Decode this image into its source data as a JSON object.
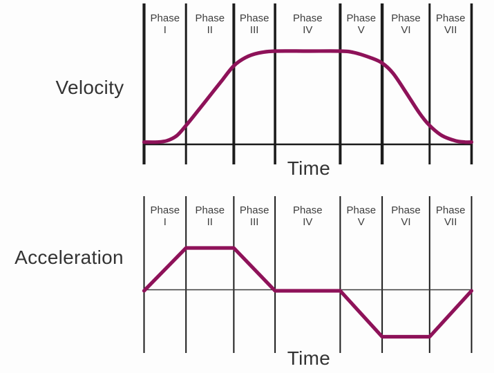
{
  "colors": {
    "curve": "#8e1259",
    "boundary_line": "#1c1c1c",
    "top_axis": "#1a1a1a",
    "bottom_axis": "#3c3c3c",
    "label_text": "#3d3d3d"
  },
  "chart_data": [
    {
      "id": "velocity",
      "type": "line",
      "ylabel": "Velocity",
      "xlabel": "Time",
      "phase_word": "Phase",
      "phases": [
        "I",
        "II",
        "III",
        "IV",
        "V",
        "VI",
        "VII"
      ],
      "phase_boundaries_t": [
        0,
        0.128,
        0.274,
        0.4,
        0.599,
        0.727,
        0.872,
        1
      ],
      "y_range": [
        0,
        1
      ],
      "values_normalized": true,
      "grid": "vertical phase boundaries only, no numeric ticks",
      "series": [
        {
          "name": "Velocity",
          "smooth": true,
          "points": [
            [
              0,
              0.01
            ],
            [
              0.04,
              0.01
            ],
            [
              0.07,
              0.025
            ],
            [
              0.1,
              0.08
            ],
            [
              0.128,
              0.19
            ],
            [
              0.16,
              0.33
            ],
            [
              0.2,
              0.51
            ],
            [
              0.24,
              0.69
            ],
            [
              0.274,
              0.84
            ],
            [
              0.31,
              0.93
            ],
            [
              0.35,
              0.98
            ],
            [
              0.4,
              1
            ],
            [
              0.5,
              1
            ],
            [
              0.599,
              1
            ],
            [
              0.64,
              0.985
            ],
            [
              0.69,
              0.93
            ],
            [
              0.727,
              0.87
            ],
            [
              0.76,
              0.76
            ],
            [
              0.8,
              0.55
            ],
            [
              0.84,
              0.33
            ],
            [
              0.872,
              0.19
            ],
            [
              0.91,
              0.08
            ],
            [
              0.95,
              0.025
            ],
            [
              0.98,
              0.01
            ],
            [
              1,
              0.01
            ]
          ]
        }
      ]
    },
    {
      "id": "acceleration",
      "type": "line",
      "ylabel": "Acceleration",
      "xlabel": "Time",
      "phase_word": "Phase",
      "phases": [
        "I",
        "II",
        "III",
        "IV",
        "V",
        "VI",
        "VII"
      ],
      "phase_boundaries_t": [
        0,
        0.128,
        0.274,
        0.4,
        0.599,
        0.727,
        0.872,
        1
      ],
      "y_range": [
        -1,
        1
      ],
      "values_normalized": true,
      "grid": "vertical phase boundaries only, no numeric ticks",
      "series": [
        {
          "name": "Acceleration",
          "smooth": false,
          "points": [
            [
              0,
              0
            ],
            [
              0.128,
              1
            ],
            [
              0.274,
              1
            ],
            [
              0.4,
              0
            ],
            [
              0.599,
              0
            ],
            [
              0.727,
              -1
            ],
            [
              0.872,
              -1
            ],
            [
              1,
              0
            ]
          ]
        }
      ]
    }
  ]
}
